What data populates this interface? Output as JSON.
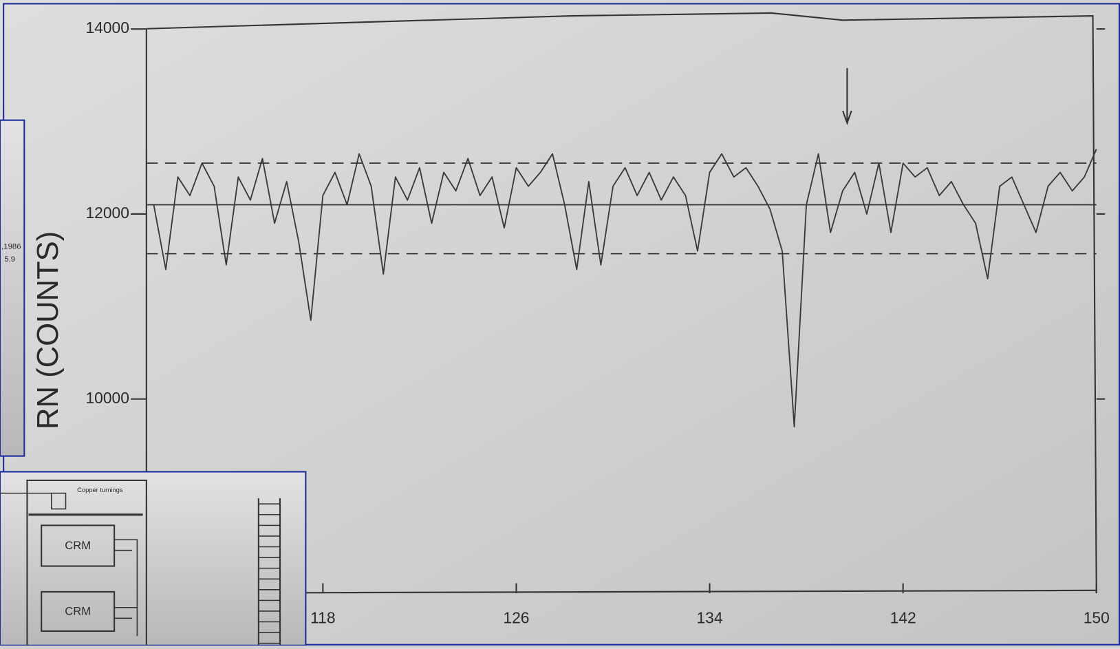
{
  "chart_data": {
    "type": "line",
    "y_label": "RN (COUNTS)",
    "x": [
      111,
      111.5,
      112,
      112.5,
      113,
      113.5,
      114,
      114.5,
      115,
      115.5,
      116,
      116.5,
      117,
      117.5,
      118,
      118.5,
      119,
      119.5,
      120,
      120.5,
      121,
      121.5,
      122,
      122.5,
      123,
      123.5,
      124,
      124.5,
      125,
      125.5,
      126,
      126.5,
      127,
      127.5,
      128,
      128.5,
      129,
      129.5,
      130,
      130.5,
      131,
      131.5,
      132,
      132.5,
      133,
      133.5,
      134,
      134.5,
      135,
      135.5,
      136,
      136.5,
      137,
      137.5,
      138,
      138.5,
      139,
      139.5,
      140,
      140.5,
      141,
      141.5,
      142,
      142.5,
      143,
      143.5,
      144,
      144.5,
      145,
      145.5,
      146,
      146.5,
      147,
      147.5,
      148,
      148.5,
      149,
      149.5,
      150
    ],
    "series": [
      {
        "color": "#3a3a3a",
        "values": [
          12100,
          11400,
          12400,
          12200,
          12550,
          12300,
          11450,
          12400,
          12150,
          12600,
          11900,
          12350,
          11700,
          10850,
          12200,
          12450,
          12100,
          12650,
          12300,
          11350,
          12400,
          12150,
          12500,
          11900,
          12450,
          12250,
          12600,
          12200,
          12400,
          11850,
          12500,
          12300,
          12450,
          12650,
          12100,
          11400,
          12350,
          11450,
          12300,
          12500,
          12200,
          12450,
          12150,
          12400,
          12200,
          11600,
          12450,
          12650,
          12400,
          12500,
          12300,
          12050,
          11600,
          9700,
          12100,
          12650,
          11800,
          12250,
          12450,
          12000,
          12550,
          11800,
          12550,
          12400,
          12500,
          12200,
          12350,
          12100,
          11900,
          11300,
          12300,
          12400,
          12100,
          11800,
          12300,
          12450,
          12250,
          12400,
          12700
        ]
      }
    ],
    "reference_lines": [
      {
        "value": 12550,
        "style": "dashed"
      },
      {
        "value": 12100,
        "style": "solid"
      },
      {
        "value": 11570,
        "style": "dashed"
      }
    ],
    "xlim": [
      110.7,
      150
    ],
    "ylim": [
      7900,
      14080
    ],
    "xticks": [
      118,
      126,
      134,
      142,
      150
    ],
    "yticks": [
      10000,
      12000,
      14000
    ]
  },
  "left_window": {
    "texts": [
      ",1986",
      "5.9"
    ]
  },
  "diagram_window": {
    "labels": [
      "Copper turnings",
      "CRM",
      "CRM"
    ]
  }
}
